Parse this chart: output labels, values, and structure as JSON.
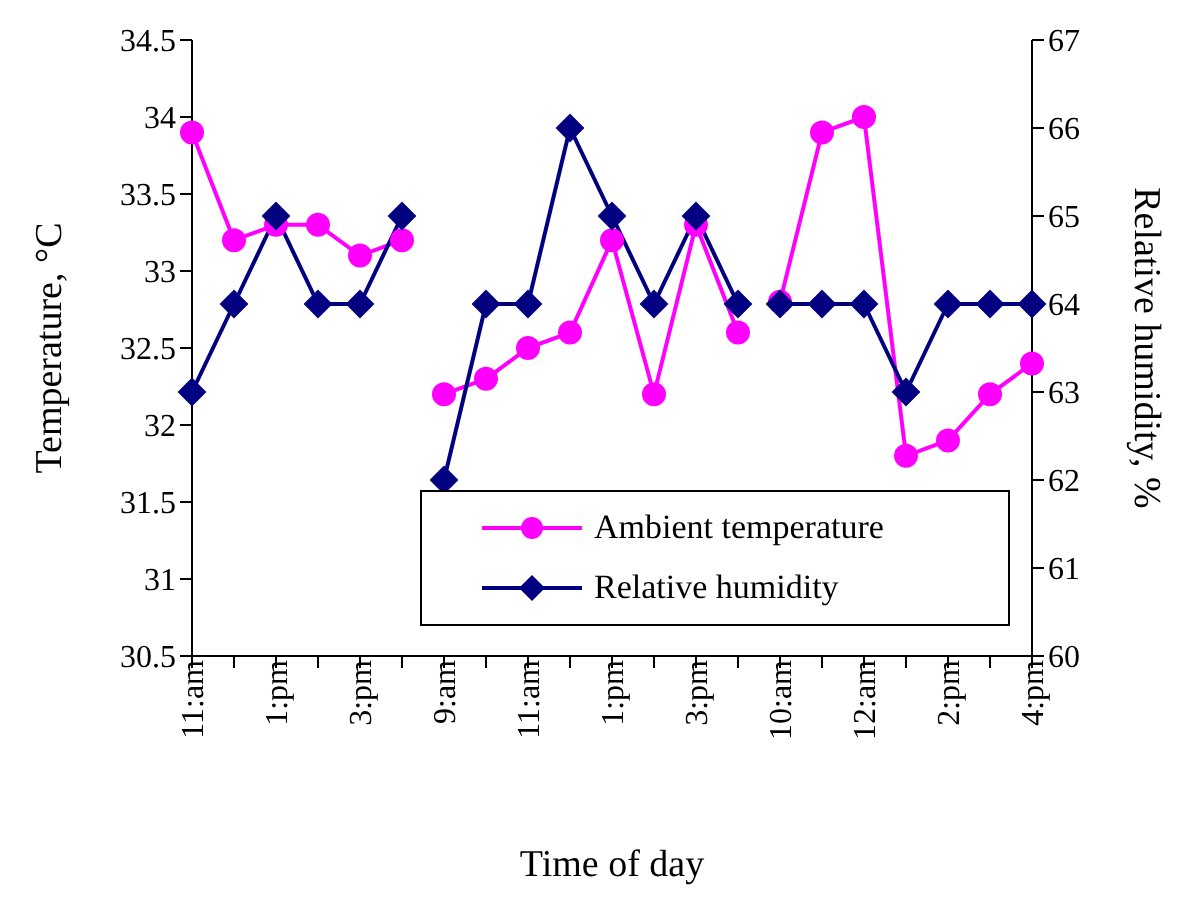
{
  "chart_data": {
    "type": "line",
    "xlabel": "Time of day",
    "ylabel": "Temperature, °C",
    "y2label": "Relative humidity, %",
    "categories": [
      "11:am",
      null,
      "1:pm",
      null,
      "3:pm",
      null,
      "9:am",
      null,
      "11:am",
      null,
      "1:pm",
      null,
      "3:pm",
      null,
      "10:am",
      null,
      "12:am",
      null,
      "2:pm",
      null,
      "4:pm"
    ],
    "series": [
      {
        "name": "Ambient temperature",
        "color": "#ff00ff",
        "marker": "circle",
        "values": [
          33.9,
          33.2,
          33.3,
          33.3,
          33.1,
          33.2,
          null,
          null,
          null,
          null,
          null,
          null,
          null,
          null,
          null,
          null,
          null,
          null,
          null,
          null,
          null
        ]
      },
      {
        "color": "#ff00ff",
        "marker": "circle",
        "values": [
          null,
          null,
          null,
          null,
          null,
          null,
          32.2,
          32.3,
          32.5,
          32.6,
          33.2,
          32.2,
          33.3,
          32.6,
          null,
          null,
          null,
          null,
          null,
          null,
          null
        ]
      },
      {
        "color": "#ff00ff",
        "marker": "circle",
        "values": [
          null,
          null,
          null,
          null,
          null,
          null,
          null,
          null,
          null,
          null,
          null,
          null,
          null,
          null,
          32.8,
          33.9,
          34.0,
          31.8,
          31.9,
          32.2,
          32.4
        ]
      },
      {
        "name": "Relative humidity",
        "color": "#000080",
        "marker": "diamond",
        "axis": "y2",
        "values": [
          63,
          64,
          65,
          64,
          64,
          65,
          null,
          null,
          null,
          null,
          null,
          null,
          null,
          null,
          null,
          null,
          null,
          null,
          null,
          null,
          null
        ]
      },
      {
        "color": "#000080",
        "marker": "diamond",
        "axis": "y2",
        "values": [
          null,
          null,
          null,
          null,
          null,
          null,
          62,
          64,
          64,
          66,
          65,
          64,
          65,
          64,
          null,
          null,
          null,
          null,
          null,
          null,
          null
        ]
      },
      {
        "color": "#000080",
        "marker": "diamond",
        "axis": "y2",
        "values": [
          null,
          null,
          null,
          null,
          null,
          null,
          null,
          null,
          null,
          null,
          null,
          null,
          null,
          null,
          64,
          64,
          64,
          63,
          64,
          64,
          64
        ]
      }
    ],
    "ylim": [
      30.5,
      34.5
    ],
    "yticks": [
      30.5,
      31,
      31.5,
      32,
      32.5,
      33,
      33.5,
      34,
      34.5
    ],
    "y2lim": [
      60,
      67
    ],
    "y2ticks": [
      60,
      61,
      62,
      63,
      64,
      65,
      66,
      67
    ],
    "grid": false,
    "legend": "bottom right"
  }
}
